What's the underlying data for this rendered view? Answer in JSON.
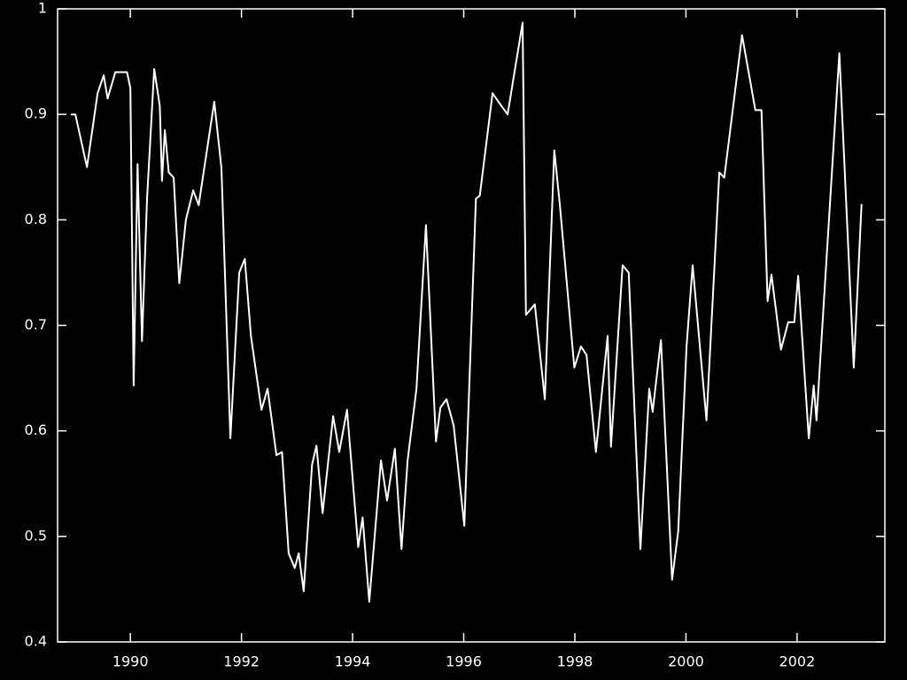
{
  "chart_data": {
    "type": "line",
    "xlim": [
      1988.69,
      2003.58
    ],
    "xticks": [
      1990,
      1992,
      1994,
      1996,
      1998,
      2000,
      2002
    ],
    "ylim": [
      0.4,
      1
    ],
    "yticks": [
      0.4,
      0.5,
      0.6,
      0.7,
      0.8,
      0.9,
      1
    ],
    "color": "#ffffff",
    "x": [
      1988.93,
      1989.01,
      1989.22,
      1989.41,
      1989.52,
      1989.59,
      1989.73,
      1989.94,
      1990.0,
      1990.06,
      1990.13,
      1990.21,
      1990.3,
      1990.43,
      1990.53,
      1990.57,
      1990.62,
      1990.69,
      1990.78,
      1990.88,
      1991.0,
      1991.13,
      1991.23,
      1991.51,
      1991.64,
      1991.8,
      1991.96,
      1992.06,
      1992.17,
      1992.36,
      1992.47,
      1992.63,
      1992.73,
      1992.85,
      1992.96,
      1993.03,
      1993.12,
      1993.27,
      1993.35,
      1993.46,
      1993.65,
      1993.76,
      1993.9,
      1994.1,
      1994.18,
      1994.3,
      1994.51,
      1994.62,
      1994.76,
      1994.88,
      1994.99,
      1995.15,
      1995.32,
      1995.5,
      1995.58,
      1995.69,
      1995.82,
      1996.01,
      1996.22,
      1996.29,
      1996.52,
      1996.65,
      1996.79,
      1997.06,
      1997.12,
      1997.28,
      1997.46,
      1997.63,
      1997.73,
      1997.99,
      1998.11,
      1998.21,
      1998.38,
      1998.59,
      1998.65,
      1998.86,
      1998.97,
      1999.18,
      1999.34,
      1999.4,
      1999.55,
      1999.75,
      1999.86,
      2000.01,
      2000.12,
      2000.37,
      2000.6,
      2000.69,
      2001.01,
      2001.25,
      2001.36,
      2001.47,
      2001.54,
      2001.71,
      2001.84,
      2001.95,
      2002.02,
      2002.21,
      2002.3,
      2002.35,
      2002.76,
      2003.02,
      2003.16
    ],
    "values": [
      0.9,
      0.9,
      0.85,
      0.92,
      0.937,
      0.915,
      0.94,
      0.94,
      0.925,
      0.643,
      0.853,
      0.685,
      0.82,
      0.943,
      0.908,
      0.837,
      0.885,
      0.845,
      0.84,
      0.74,
      0.8,
      0.828,
      0.814,
      0.912,
      0.849,
      0.593,
      0.75,
      0.763,
      0.69,
      0.62,
      0.64,
      0.577,
      0.58,
      0.484,
      0.47,
      0.484,
      0.448,
      0.568,
      0.586,
      0.522,
      0.614,
      0.58,
      0.62,
      0.49,
      0.518,
      0.438,
      0.572,
      0.534,
      0.583,
      0.488,
      0.572,
      0.64,
      0.795,
      0.59,
      0.622,
      0.63,
      0.605,
      0.51,
      0.82,
      0.823,
      0.92,
      0.91,
      0.9,
      0.987,
      0.71,
      0.72,
      0.63,
      0.866,
      0.815,
      0.66,
      0.68,
      0.672,
      0.58,
      0.69,
      0.585,
      0.757,
      0.75,
      0.488,
      0.64,
      0.618,
      0.686,
      0.459,
      0.505,
      0.68,
      0.757,
      0.61,
      0.845,
      0.84,
      0.975,
      0.904,
      0.904,
      0.723,
      0.748,
      0.677,
      0.703,
      0.703,
      0.747,
      0.593,
      0.643,
      0.61,
      0.958,
      0.66,
      0.815
    ]
  }
}
